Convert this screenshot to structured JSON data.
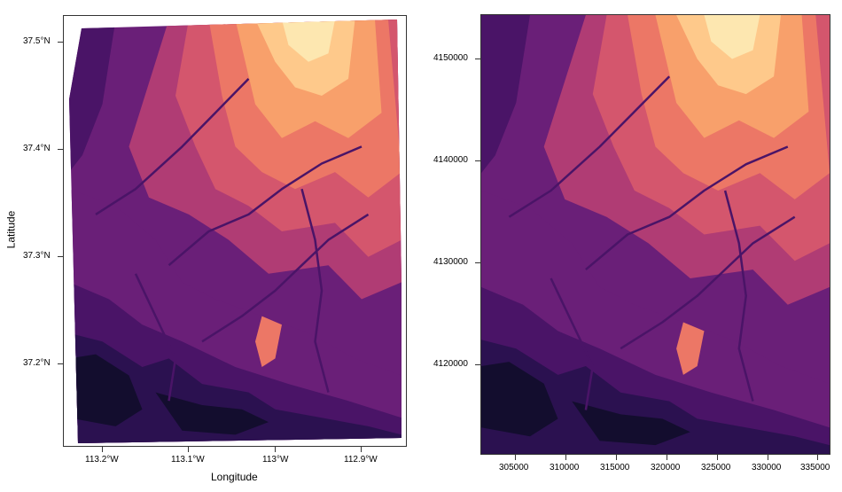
{
  "map_left": {
    "x_title": "Longitude",
    "y_title": "Latitude",
    "x_ticks": [
      "113.2°W",
      "113.1°W",
      "113°W",
      "112.9°W"
    ],
    "y_ticks": [
      "37.5°N",
      "37.4°N",
      "37.3°N",
      "37.2°N"
    ]
  },
  "map_right": {
    "x_ticks": [
      "305000",
      "310000",
      "315000",
      "320000",
      "325000",
      "330000",
      "335000"
    ],
    "y_ticks": [
      "4150000",
      "4140000",
      "4130000",
      "4120000"
    ]
  },
  "palette": [
    "#130d2e",
    "#2b1150",
    "#4a1467",
    "#6a1f78",
    "#8c2b7c",
    "#b03c74",
    "#d4566d",
    "#ec7766",
    "#f8a06b",
    "#fec98b",
    "#fde7b0"
  ]
}
